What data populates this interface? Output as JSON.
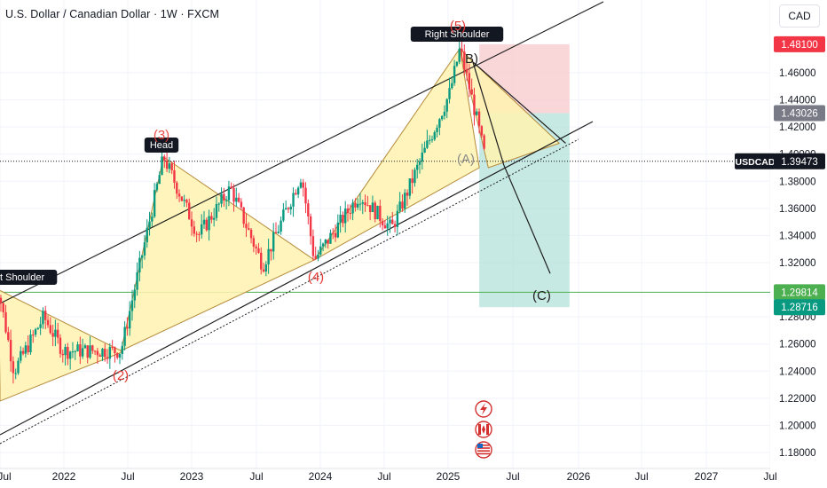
{
  "header": {
    "title": "U.S. Dollar / Canadian Dollar · 1W · FXCM",
    "currency": "CAD"
  },
  "colors": {
    "up": "#089981",
    "down": "#f23645",
    "pattern_fill": "#fff3b0",
    "stop_zone": "#f7c9cc",
    "target_zone": "#a8ddd4",
    "guide_line": "#4caf50",
    "wave_label": "#e53935"
  },
  "icons": [
    "lightning-icon",
    "canada-flag-icon",
    "us-flag-icon"
  ],
  "chart_data": {
    "type": "candlestick",
    "symbol": "USDCAD",
    "timeframe": "1W",
    "x_ticks": [
      "Jul",
      "2022",
      "Jul",
      "2023",
      "Jul",
      "2024",
      "Jul",
      "2025",
      "Jul",
      "2026",
      "Jul",
      "2027",
      "Jul"
    ],
    "y_ticks": [
      "1.18000",
      "1.20000",
      "1.22000",
      "1.24000",
      "1.26000",
      "1.28000",
      "1.32000",
      "1.34000",
      "1.36000",
      "1.38000",
      "1.40000",
      "1.42000",
      "1.44000",
      "1.46000"
    ],
    "ylim": [
      1.17,
      1.505
    ],
    "price_labels": [
      {
        "text": "1.48100",
        "kind": "stop",
        "value": 1.481
      },
      {
        "text": "1.43026",
        "kind": "entry",
        "value": 1.43026
      },
      {
        "text": "USDCAD",
        "kind": "symbol",
        "value": 1.39473
      },
      {
        "text": "1.39473",
        "kind": "last",
        "value": 1.39473
      },
      {
        "text": "1.29814",
        "kind": "line",
        "value": 1.29814
      },
      {
        "text": "1.28716",
        "kind": "target",
        "value": 1.28716
      }
    ],
    "last_price": 1.39473,
    "horizontal_line": 1.29814,
    "pattern_labels": [
      "ht Shoulder",
      "Head",
      "Right Shoulder"
    ],
    "wave_labels": [
      "(2)",
      "(3)",
      "(4)",
      "(5)"
    ],
    "correction_labels": [
      "B)",
      "(A)",
      "(C)"
    ],
    "pattern_points": [
      {
        "date": "2021.5",
        "price": 1.3
      },
      {
        "date": "2022.45",
        "price": 1.255
      },
      {
        "date": "2022.78",
        "price": 1.398
      },
      {
        "date": "2023.95",
        "price": 1.322
      },
      {
        "date": "2025.08",
        "price": 1.478
      },
      {
        "date": "2025.23",
        "price": 1.39
      }
    ],
    "projection": [
      {
        "date": "2025.18",
        "price": 1.468
      },
      {
        "date": "2025.42",
        "price": 1.392
      },
      {
        "date": "2025.78",
        "price": 1.312
      }
    ],
    "trade_box": {
      "stop": 1.481,
      "entry": 1.43026,
      "target": 1.28716,
      "start": "2025.23",
      "end": "2025.93"
    }
  }
}
